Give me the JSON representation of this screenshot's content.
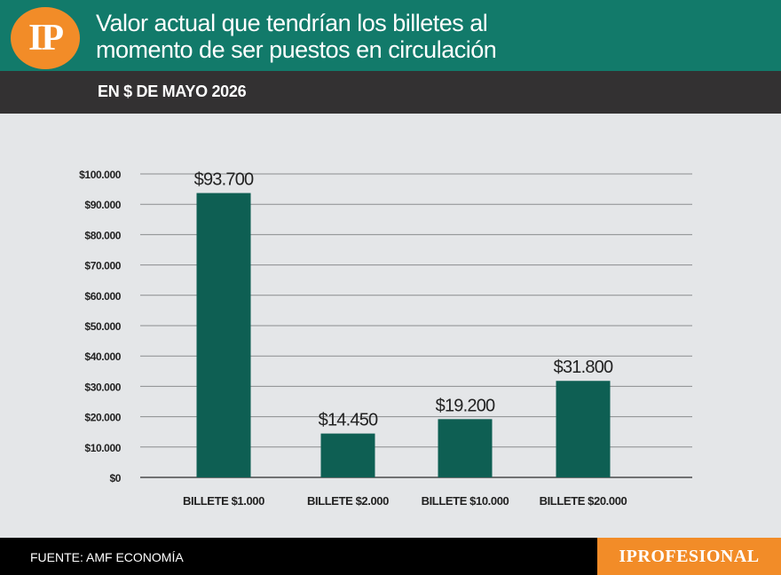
{
  "header": {
    "logo_text": "IP",
    "title_line1": "Valor actual que tendrían los billetes al",
    "title_line2": "momento de ser puestos en circulación",
    "subtitle": "EN $ DE MAYO 2026"
  },
  "footer": {
    "source": "FUENTE:  AMF ECONOMÍA",
    "brand": "IPROFESIONAL"
  },
  "colors": {
    "header_bg": "#127a6a",
    "bar": "#0e5f53",
    "accent": "#f28c28",
    "subbar_bg": "#333132",
    "background": "#e4e6e8"
  },
  "chart_data": {
    "type": "bar",
    "categories": [
      "BILLETE $1.000",
      "BILLETE $2.000",
      "BILLETE $10.000",
      "BILLETE $20.000"
    ],
    "values": [
      93700,
      14450,
      19200,
      31800
    ],
    "data_labels": [
      "$93.700",
      "$14.450",
      "$19.200",
      "$31.800"
    ],
    "ylim": [
      0,
      100000
    ],
    "yticks": [
      0,
      10000,
      20000,
      30000,
      40000,
      50000,
      60000,
      70000,
      80000,
      90000,
      100000
    ],
    "ytick_labels": [
      "$0",
      "$10.000",
      "$20.000",
      "$30.000",
      "$40.000",
      "$50.000",
      "$60.000",
      "$70.000",
      "$80.000",
      "$90.000",
      "$100.000"
    ],
    "grid": true,
    "legend": "none"
  }
}
